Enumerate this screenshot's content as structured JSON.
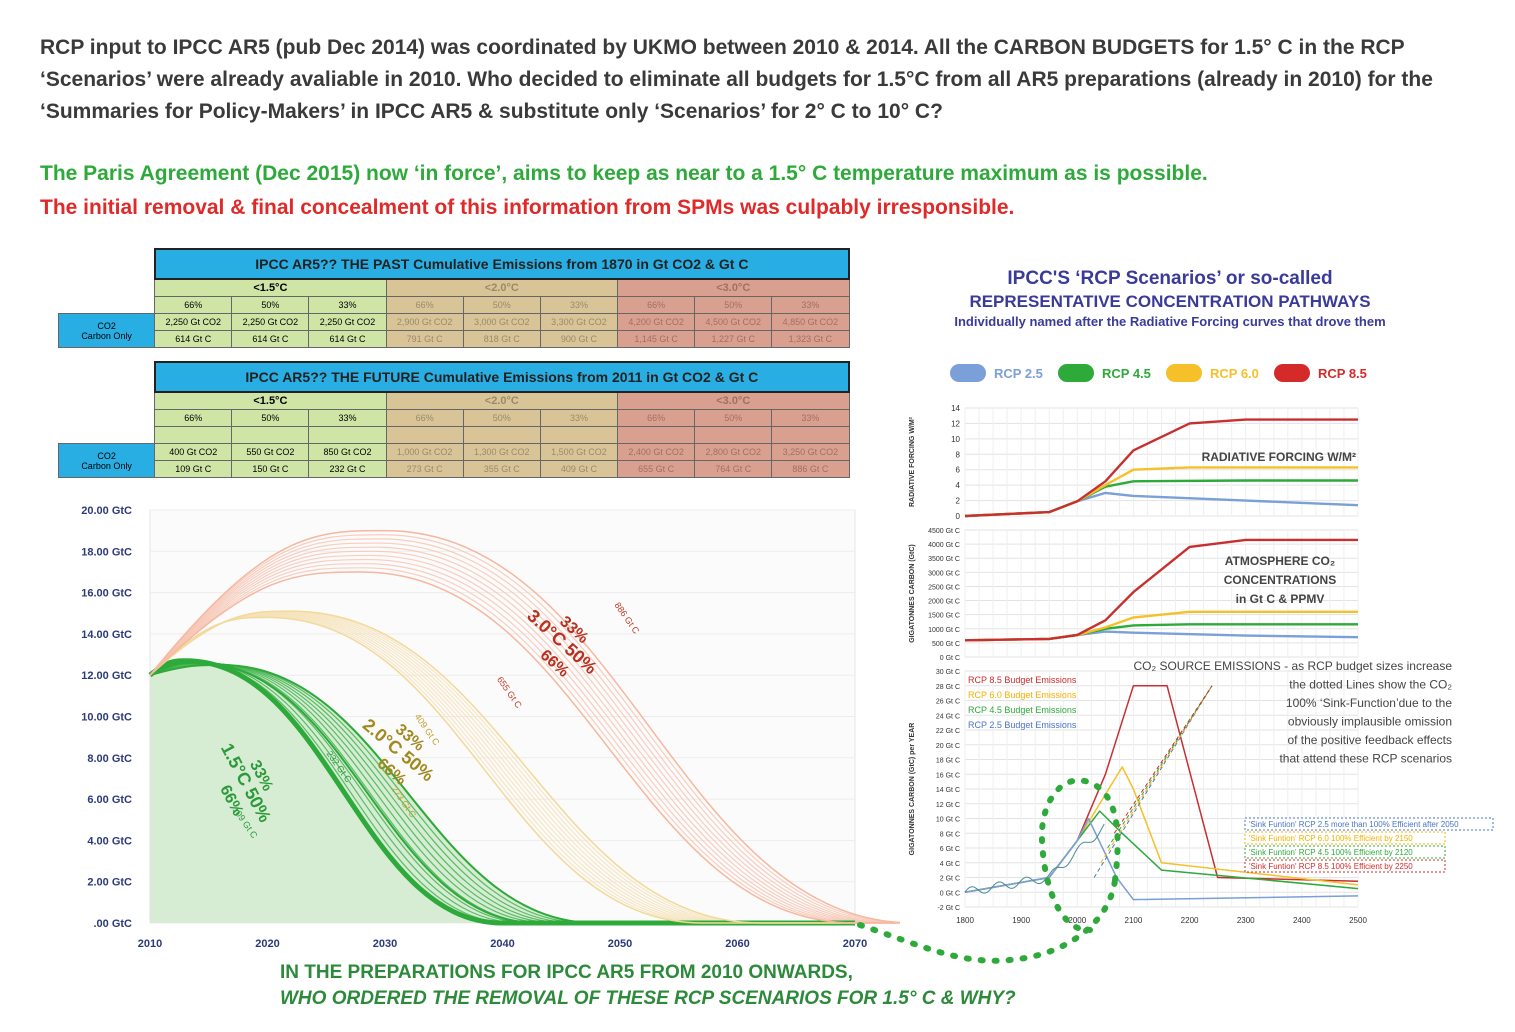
{
  "headlines": {
    "line1": "RCP input to IPCC AR5 (pub Dec 2014) was coordinated by UKMO between 2010 & 2014. All the CARBON BUDGETS for 1.5° C in the RCP ‘Scenarios’ were already avaliable in 2010. Who decided to eliminate all budgets for 1.5°C from all AR5 preparations (already in 2010) for the ‘Summaries for Policy-Makers’ in IPCC AR5 & substitute only ‘Scenarios’ for 2° C to 10° C?",
    "line2": "The Paris Agreement (Dec 2015) now ‘in force’, aims to keep as near to a 1.5° C temperature maximum as is possible.",
    "line3": "The initial removal & final concealment of this information from SPMs was culpably irresponsible."
  },
  "tables": {
    "past": {
      "title": "IPCC AR5?? THE PAST Cumulative Emissions from 1870 in Gt CO2 & Gt C",
      "groups": [
        "<1.5°C",
        "<2.0°C",
        "<3.0°C"
      ],
      "probs": [
        "66%",
        "50%",
        "33%",
        "66%",
        "50%",
        "33%",
        "66%",
        "50%",
        "33%"
      ],
      "row_label_1": "CO2",
      "row_label_2": "Carbon Only",
      "co2": [
        "2,250 Gt CO2",
        "2,250 Gt CO2",
        "2,250 Gt CO2",
        "2,900 Gt CO2",
        "3,000 Gt CO2",
        "3,300 Gt CO2",
        "4,200 Gt CO2",
        "4,500 Gt CO2",
        "4,850 Gt CO2"
      ],
      "carbon": [
        "614 Gt C",
        "614 Gt C",
        "614 Gt C",
        "791 Gt C",
        "818 Gt C",
        "900 Gt C",
        "1,145 Gt C",
        "1,227 Gt C",
        "1,323 Gt C"
      ]
    },
    "future": {
      "title": "IPCC AR5?? THE FUTURE Cumulative Emissions from 2011 in Gt CO2 & Gt C",
      "groups": [
        "<1.5°C",
        "<2.0°C",
        "<3.0°C"
      ],
      "probs": [
        "66%",
        "50%",
        "33%",
        "66%",
        "50%",
        "33%",
        "66%",
        "50%",
        "33%"
      ],
      "row_label_1": "CO2",
      "row_label_2": "Carbon Only",
      "co2": [
        "400 Gt CO2",
        "550 Gt CO2",
        "850 Gt CO2",
        "1,000 Gt CO2",
        "1,300 Gt CO2",
        "1,500 Gt CO2",
        "2,400 Gt CO2",
        "2,800 Gt CO2",
        "3,250 Gt CO2"
      ],
      "carbon": [
        "109 Gt C",
        "150 Gt C",
        "232 Gt C",
        "273 Gt C",
        "355 Gt C",
        "409 Gt C",
        "655 Gt C",
        "764 Gt C",
        "886 Gt C"
      ]
    }
  },
  "rcp_header": {
    "title": "IPCC'S ‘RCP Scenarios’ or so-called",
    "subtitle": "REPRESENTATIVE CONCENTRATION PATHWAYS",
    "note": "Individually named after the Radiative Forcing curves that drove them",
    "legend": [
      {
        "label": "RCP 2.5",
        "color": "#7b9fd8"
      },
      {
        "label": "RCP 4.5",
        "color": "#2daa3a"
      },
      {
        "label": "RCP 6.0",
        "color": "#f5c02a"
      },
      {
        "label": "RCP 8.5",
        "color": "#d42a2a"
      }
    ]
  },
  "bottom_text": {
    "line1": "IN THE PREPARATIONS FOR IPCC AR5 FROM 2010 ONWARDS,",
    "line2": "WHO ORDERED THE REMOVAL OF THESE RCP SCENARIOS FOR 1.5° C & WHY?"
  },
  "chart_data": [
    {
      "type": "area",
      "title": "",
      "ylabels": [
        "20.00 GtC",
        "18.00 GtC",
        "16.00 GtC",
        "14.00 GtC",
        "12.00 GtC",
        "10.00 GtC",
        "8.00 GtC",
        "6.00 GtC",
        "4.00 GtC",
        "2.00 GtC",
        ".00 GtC"
      ],
      "xlabels": [
        "2010",
        "2020",
        "2030",
        "2040",
        "2050",
        "2060",
        "2070"
      ],
      "xlim": [
        2010,
        2070
      ],
      "ylim": [
        0,
        20
      ],
      "series": [
        {
          "group": "1.5",
          "color": "#2daa3a",
          "peak_year": 2013,
          "peak_value": 12.7,
          "end_year": 2040,
          "label": "109 Gt C"
        },
        {
          "group": "1.5",
          "color": "#2daa3a",
          "peak_year": 2014,
          "peak_value": 12.6,
          "end_year": 2043,
          "label": "150 Gt C"
        },
        {
          "group": "1.5",
          "color": "#2daa3a",
          "peak_year": 2016,
          "peak_value": 12.5,
          "end_year": 2048,
          "label": "232 Gt C"
        },
        {
          "group": "2.0",
          "color": "#f3d99a",
          "peak_year": 2020,
          "peak_value": 14.8,
          "end_year": 2057,
          "label": "273 Gt C"
        },
        {
          "group": "2.0",
          "color": "#f3d99a",
          "peak_year": 2022,
          "peak_value": 15.1,
          "end_year": 2062,
          "label": "409 Gt C"
        },
        {
          "group": "3.0",
          "color": "#f6b8a0",
          "peak_year": 2028,
          "peak_value": 17.0,
          "end_year": 2070,
          "label": "655 Gt C"
        },
        {
          "group": "3.0",
          "color": "#f6b8a0",
          "peak_year": 2030,
          "peak_value": 19.0,
          "end_year": 2075,
          "label": "886 Gt C"
        }
      ],
      "annotations": [
        {
          "text": "1.5°C 50%",
          "probs": [
            "33%",
            "66%"
          ]
        },
        {
          "text": "2.0°C 50%",
          "probs": [
            "33%",
            "66%"
          ]
        },
        {
          "text": "3.0°C 50%",
          "probs": [
            "33%",
            "66%"
          ]
        }
      ],
      "budget_labels": [
        "109 Gt C",
        "232 Gt C",
        "273 Gt C",
        "409 Gt C",
        "655 Gt C",
        "886 Gt C"
      ]
    },
    {
      "type": "line",
      "title": "RADIATIVE FORCING W/M²",
      "ylabel": "RADIATIVE FORCING W/M²",
      "yticks": [
        "14",
        "12",
        "10",
        "8",
        "6",
        "4",
        "2",
        "0"
      ],
      "ylim": [
        0,
        14
      ],
      "xlim": [
        1800,
        2500
      ],
      "series": [
        {
          "name": "RCP 2.5",
          "color": "#7b9fd8",
          "points": [
            [
              1800,
              0
            ],
            [
              1950,
              0.5
            ],
            [
              2000,
              1.9
            ],
            [
              2050,
              3.0
            ],
            [
              2100,
              2.6
            ],
            [
              2300,
              2.0
            ],
            [
              2500,
              1.4
            ]
          ]
        },
        {
          "name": "RCP 4.5",
          "color": "#2daa3a",
          "points": [
            [
              1800,
              0
            ],
            [
              1950,
              0.5
            ],
            [
              2000,
              1.9
            ],
            [
              2050,
              3.8
            ],
            [
              2100,
              4.5
            ],
            [
              2300,
              4.6
            ],
            [
              2500,
              4.6
            ]
          ]
        },
        {
          "name": "RCP 6.0",
          "color": "#f5c02a",
          "points": [
            [
              1800,
              0
            ],
            [
              1950,
              0.5
            ],
            [
              2000,
              1.9
            ],
            [
              2050,
              4.0
            ],
            [
              2100,
              6.0
            ],
            [
              2200,
              6.3
            ],
            [
              2500,
              6.3
            ]
          ]
        },
        {
          "name": "RCP 8.5",
          "color": "#c83030",
          "points": [
            [
              1800,
              0
            ],
            [
              1950,
              0.5
            ],
            [
              2000,
              1.9
            ],
            [
              2050,
              4.5
            ],
            [
              2100,
              8.5
            ],
            [
              2200,
              12.0
            ],
            [
              2300,
              12.5
            ],
            [
              2500,
              12.5
            ]
          ]
        }
      ]
    },
    {
      "type": "line",
      "title_lines": [
        "ATMOSPHERE CO₂",
        "CONCENTRATIONS",
        "in Gt C & PPMV"
      ],
      "ylabel": "GIGATONNES CARBON (GtC)",
      "yticks": [
        "4500 Gt C",
        "4000 Gt C",
        "3500 Gt C",
        "3000 Gt C",
        "2500 Gt C",
        "2000 Gt C",
        "1500 Gt C",
        "1000 Gt C",
        "500 Gt C",
        "0 Gt C"
      ],
      "ylim": [
        0,
        4500
      ],
      "xlim": [
        1800,
        2500
      ],
      "series": [
        {
          "name": "RCP 2.5",
          "color": "#7b9fd8",
          "points": [
            [
              1800,
              590
            ],
            [
              1950,
              640
            ],
            [
              2000,
              780
            ],
            [
              2050,
              900
            ],
            [
              2100,
              860
            ],
            [
              2300,
              760
            ],
            [
              2500,
              700
            ]
          ]
        },
        {
          "name": "RCP 4.5",
          "color": "#2daa3a",
          "points": [
            [
              1800,
              590
            ],
            [
              1950,
              640
            ],
            [
              2000,
              780
            ],
            [
              2050,
              1000
            ],
            [
              2100,
              1120
            ],
            [
              2200,
              1160
            ],
            [
              2500,
              1160
            ]
          ]
        },
        {
          "name": "RCP 6.0",
          "color": "#f5c02a",
          "points": [
            [
              1800,
              590
            ],
            [
              1950,
              640
            ],
            [
              2000,
              780
            ],
            [
              2050,
              1050
            ],
            [
              2100,
              1400
            ],
            [
              2200,
              1600
            ],
            [
              2500,
              1600
            ]
          ]
        },
        {
          "name": "RCP 8.5",
          "color": "#c83030",
          "points": [
            [
              1800,
              590
            ],
            [
              1950,
              640
            ],
            [
              2000,
              780
            ],
            [
              2050,
              1300
            ],
            [
              2100,
              2300
            ],
            [
              2200,
              3900
            ],
            [
              2300,
              4150
            ],
            [
              2500,
              4150
            ]
          ]
        }
      ]
    },
    {
      "type": "line",
      "ylabel": "GIGATONNES CARBON (GtC) per YEAR",
      "yticks": [
        "30 Gt C",
        "28 Gt C",
        "26 Gt C",
        "24 Gt C",
        "22 Gt C",
        "20 Gt C",
        "18 Gt C",
        "16 Gt C",
        "14 Gt C",
        "12 Gt C",
        "10 Gt C",
        "8 Gt C",
        "6 Gt C",
        "4 Gt C",
        "2 Gt C",
        "0 Gt C",
        "-2 Gt C"
      ],
      "xticks": [
        "1800",
        "1900",
        "2000",
        "2100",
        "2200",
        "2300",
        "2400",
        "2500"
      ],
      "ylim": [
        -2,
        30
      ],
      "xlim": [
        1800,
        2500
      ],
      "annotation_lines": [
        "CO₂ SOURCE EMISSIONS - as RCP budget sizes increase",
        "the dotted Lines show the CO₂",
        "100% ‘Sink-Function’due to the",
        "obviously implausible omission",
        "of the positive feedback effects",
        "that attend these RCP scenarios"
      ],
      "budget_labels": [
        {
          "text": "RCP 8.5 Budget Emissions",
          "color": "#d42a2a"
        },
        {
          "text": "RCP 6.0 Budget Emissions",
          "color": "#f5b000"
        },
        {
          "text": "RCP 4.5 Budget Emissions",
          "color": "#2daa3a"
        },
        {
          "text": "RCP 2.5 Budget Emissions",
          "color": "#4a74c8"
        }
      ],
      "sink_labels": [
        {
          "text": "'Sink Funtion' RCP 2.5 more than 100% Efficient after 2050",
          "color": "#4a74c8"
        },
        {
          "text": "'Sink Funtion' RCP 6.0 100% Efficient by 2150",
          "color": "#f5b000"
        },
        {
          "text": "'Sink Funtion' RCP 4.5 100% Efficient by 2120",
          "color": "#2daa3a"
        },
        {
          "text": "'Sink Funtion' RCP 8.5 100% Efficient by 2250",
          "color": "#d42a2a"
        }
      ],
      "series": [
        {
          "name": "RCP 8.5",
          "color": "#c83030",
          "points": [
            [
              1800,
              0
            ],
            [
              1950,
              2
            ],
            [
              2000,
              7
            ],
            [
              2050,
              16
            ],
            [
              2100,
              28
            ],
            [
              2160,
              28
            ],
            [
              2250,
              2
            ],
            [
              2500,
              1.5
            ]
          ]
        },
        {
          "name": "RCP 6.0",
          "color": "#f5c02a",
          "points": [
            [
              1800,
              0
            ],
            [
              1950,
              2
            ],
            [
              2000,
              7
            ],
            [
              2080,
              17
            ],
            [
              2100,
              14
            ],
            [
              2150,
              4
            ],
            [
              2500,
              1
            ]
          ]
        },
        {
          "name": "RCP 4.5",
          "color": "#2daa3a",
          "points": [
            [
              1800,
              0
            ],
            [
              1950,
              2
            ],
            [
              2000,
              7
            ],
            [
              2040,
              11
            ],
            [
              2080,
              8
            ],
            [
              2150,
              3
            ],
            [
              2500,
              0.5
            ]
          ]
        },
        {
          "name": "RCP 2.5",
          "color": "#7b9fd8",
          "points": [
            [
              1800,
              0
            ],
            [
              1950,
              2
            ],
            [
              2000,
              7
            ],
            [
              2020,
              10
            ],
            [
              2070,
              2
            ],
            [
              2100,
              -1
            ],
            [
              2500,
              -0.5
            ]
          ]
        }
      ]
    }
  ]
}
